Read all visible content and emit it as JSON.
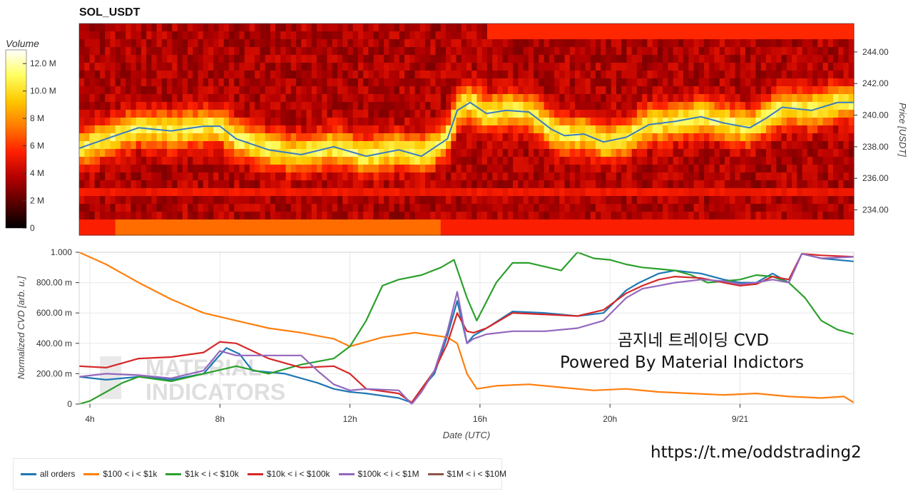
{
  "chart_data": [
    {
      "type": "heatmap",
      "title": "SOL_USDT",
      "ylabel": "Price [USDT]",
      "ylim": [
        232.4,
        245.8
      ],
      "yticks": [
        "234.00",
        "236.00",
        "238.00",
        "240.00",
        "242.00",
        "244.00"
      ],
      "xlim": [
        3.67,
        27.5
      ],
      "colorbar": {
        "title": "Volume",
        "ticks": [
          "0",
          "2 M",
          "4 M",
          "6 M",
          "8 M",
          "10.0 M",
          "12.0 M"
        ],
        "range": [
          0,
          13000000
        ],
        "colormap": [
          "#000000",
          "#5a0000",
          "#b40000",
          "#ff2000",
          "#ff7a00",
          "#ffc800",
          "#ffff60",
          "#ffffff"
        ]
      },
      "price_line": {
        "color": "#3b7bbf",
        "x": [
          3.67,
          4.5,
          5.5,
          6.5,
          7.5,
          8.0,
          8.5,
          9.5,
          10.5,
          11.5,
          12.5,
          13.5,
          14.2,
          15.0,
          15.3,
          15.7,
          16.2,
          16.8,
          17.5,
          18.2,
          18.6,
          19.2,
          19.8,
          20.5,
          21.2,
          22.0,
          22.8,
          23.5,
          24.3,
          24.8,
          25.3,
          26.2,
          27.0,
          27.5
        ],
        "y": [
          237.9,
          238.5,
          239.2,
          239.0,
          239.3,
          239.3,
          238.5,
          237.8,
          237.5,
          238.0,
          237.4,
          237.8,
          237.4,
          238.5,
          240.3,
          240.8,
          240.1,
          240.3,
          240.2,
          239.1,
          238.7,
          238.8,
          238.3,
          238.6,
          239.4,
          239.6,
          239.9,
          239.5,
          239.2,
          239.8,
          240.5,
          240.3,
          240.8,
          240.8
        ]
      }
    },
    {
      "type": "line",
      "xlabel": "Date (UTC)",
      "ylabel": "Normalized CVD [arb. u.]",
      "ylim": [
        0,
        1.0
      ],
      "yticks": [
        "0",
        "200.00 m",
        "400.00 m",
        "600.00 m",
        "800.00 m",
        "1.000"
      ],
      "xlim": [
        3.67,
        27.5
      ],
      "xticks": [
        {
          "x": 4,
          "label": "4h"
        },
        {
          "x": 8,
          "label": "8h"
        },
        {
          "x": 12,
          "label": "12h"
        },
        {
          "x": 16,
          "label": "16h"
        },
        {
          "x": 20,
          "label": "20h"
        },
        {
          "x": 24,
          "label": "9/21"
        }
      ],
      "series": [
        {
          "name": "all orders",
          "color": "#1f77b4",
          "x": [
            3.67,
            4.5,
            5.5,
            6.5,
            7.5,
            7.9,
            8.2,
            8.6,
            9.0,
            10.0,
            11.0,
            11.5,
            12.0,
            12.5,
            13.5,
            13.9,
            14.2,
            14.6,
            15.0,
            15.3,
            15.6,
            15.8,
            16.2,
            17.0,
            18.0,
            19.0,
            19.8,
            20.5,
            20.9,
            21.5,
            22.0,
            22.8,
            23.5,
            24.0,
            24.5,
            25.0,
            25.5,
            25.9,
            26.5,
            27.5
          ],
          "y": [
            0.18,
            0.16,
            0.18,
            0.16,
            0.2,
            0.3,
            0.37,
            0.33,
            0.22,
            0.2,
            0.14,
            0.1,
            0.08,
            0.07,
            0.04,
            0.01,
            0.1,
            0.2,
            0.45,
            0.68,
            0.4,
            0.45,
            0.5,
            0.61,
            0.6,
            0.58,
            0.6,
            0.75,
            0.8,
            0.86,
            0.88,
            0.86,
            0.82,
            0.8,
            0.8,
            0.86,
            0.8,
            0.99,
            0.96,
            0.94
          ]
        },
        {
          "name": "$100 < i < $1k",
          "color": "#ff7f0e",
          "x": [
            3.67,
            4.5,
            5.5,
            6.5,
            7.5,
            8.5,
            9.5,
            10.5,
            11.5,
            12.0,
            13.0,
            14.0,
            15.0,
            15.3,
            15.6,
            15.9,
            16.5,
            17.5,
            18.5,
            19.5,
            20.5,
            21.5,
            22.5,
            23.5,
            24.5,
            25.5,
            26.5,
            27.2,
            27.5
          ],
          "y": [
            1.0,
            0.92,
            0.8,
            0.69,
            0.6,
            0.55,
            0.5,
            0.47,
            0.43,
            0.38,
            0.44,
            0.47,
            0.44,
            0.4,
            0.2,
            0.1,
            0.12,
            0.13,
            0.11,
            0.09,
            0.1,
            0.08,
            0.07,
            0.06,
            0.07,
            0.05,
            0.04,
            0.05,
            0.01
          ]
        },
        {
          "name": "$1k < i < $10k",
          "color": "#2ca02c",
          "x": [
            3.67,
            4.0,
            4.5,
            5.0,
            5.5,
            6.5,
            7.5,
            8.5,
            9.5,
            10.5,
            11.5,
            12.0,
            12.5,
            13.0,
            13.5,
            14.2,
            14.8,
            15.2,
            15.6,
            15.9,
            16.5,
            17.0,
            17.5,
            18.5,
            19.0,
            19.5,
            20.0,
            20.5,
            21.0,
            21.5,
            22.0,
            22.5,
            23.0,
            23.5,
            24.0,
            24.5,
            25.0,
            25.5,
            26.0,
            26.5,
            27.0,
            27.5
          ],
          "y": [
            0.0,
            0.02,
            0.08,
            0.14,
            0.18,
            0.15,
            0.2,
            0.25,
            0.2,
            0.26,
            0.3,
            0.38,
            0.55,
            0.78,
            0.82,
            0.85,
            0.9,
            0.95,
            0.7,
            0.55,
            0.8,
            0.93,
            0.93,
            0.88,
            1.0,
            0.96,
            0.95,
            0.92,
            0.9,
            0.89,
            0.88,
            0.85,
            0.8,
            0.81,
            0.82,
            0.85,
            0.84,
            0.8,
            0.7,
            0.55,
            0.49,
            0.46
          ]
        },
        {
          "name": "$10k < i < $100k",
          "color": "#d62728",
          "x": [
            3.67,
            4.5,
            5.5,
            6.5,
            7.5,
            8.0,
            8.5,
            9.5,
            10.5,
            11.5,
            12.0,
            12.5,
            13.5,
            13.9,
            14.2,
            14.6,
            15.0,
            15.3,
            15.6,
            15.8,
            16.2,
            17.0,
            18.0,
            19.0,
            19.8,
            20.5,
            21.0,
            21.5,
            22.0,
            22.8,
            23.5,
            24.0,
            24.5,
            25.0,
            25.5,
            25.9,
            26.5,
            27.5
          ],
          "y": [
            0.25,
            0.24,
            0.3,
            0.31,
            0.34,
            0.41,
            0.4,
            0.3,
            0.24,
            0.25,
            0.2,
            0.1,
            0.07,
            0.01,
            0.1,
            0.22,
            0.4,
            0.6,
            0.48,
            0.47,
            0.5,
            0.6,
            0.59,
            0.58,
            0.62,
            0.73,
            0.78,
            0.82,
            0.84,
            0.83,
            0.8,
            0.78,
            0.79,
            0.84,
            0.82,
            0.99,
            0.98,
            0.97
          ]
        },
        {
          "name": "$100k < i < $1M",
          "color": "#9467bd",
          "x": [
            3.67,
            4.5,
            5.5,
            6.5,
            7.5,
            8.0,
            8.5,
            9.0,
            9.5,
            10.5,
            11.0,
            11.5,
            12.0,
            12.5,
            13.5,
            13.9,
            14.2,
            14.6,
            15.0,
            15.3,
            15.6,
            15.8,
            16.2,
            17.0,
            18.0,
            19.0,
            19.8,
            20.5,
            21.0,
            21.5,
            22.0,
            22.8,
            23.5,
            24.0,
            24.5,
            25.0,
            25.5,
            25.9,
            26.5,
            27.5
          ],
          "y": [
            0.18,
            0.2,
            0.19,
            0.17,
            0.22,
            0.35,
            0.32,
            0.32,
            0.32,
            0.32,
            0.22,
            0.13,
            0.09,
            0.1,
            0.09,
            0.0,
            0.08,
            0.22,
            0.48,
            0.74,
            0.4,
            0.43,
            0.46,
            0.48,
            0.48,
            0.5,
            0.55,
            0.7,
            0.76,
            0.78,
            0.8,
            0.82,
            0.81,
            0.79,
            0.8,
            0.82,
            0.8,
            0.99,
            0.96,
            0.97
          ]
        },
        {
          "name": "$1M < i < $10M",
          "color": "#8c564b",
          "x": [],
          "y": []
        }
      ],
      "overlay_text": [
        "곰지네 트레이딩 CVD",
        "Powered By Material Indictors"
      ],
      "watermark": [
        "MATERIAL",
        "INDICATORS"
      ]
    }
  ],
  "footer_link": "https://t.me/oddstrading2"
}
